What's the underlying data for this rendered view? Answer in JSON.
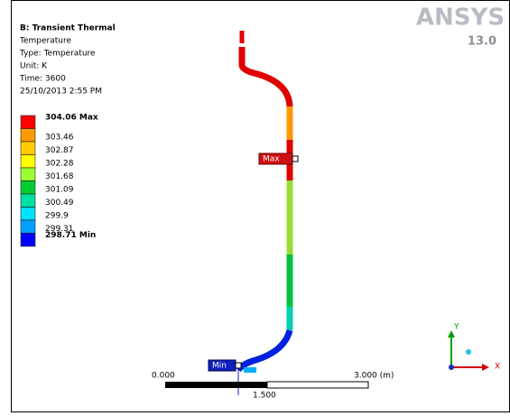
{
  "header": {
    "title": "B: Transient Thermal",
    "lines": [
      "Temperature",
      "Type: Temperature",
      "Unit: K",
      "Time: 3600",
      "25/10/2013 2:55 PM"
    ]
  },
  "legend": [
    {
      "label": "304.06 Max",
      "color": "#ff0000"
    },
    {
      "label": "303.46",
      "color": "#ff9900"
    },
    {
      "label": "302.87",
      "color": "#ffcc00"
    },
    {
      "label": "302.28",
      "color": "#ffff00"
    },
    {
      "label": "301.68",
      "color": "#99ff33"
    },
    {
      "label": "301.09",
      "color": "#00cc33"
    },
    {
      "label": "300.49",
      "color": "#00e0a0"
    },
    {
      "label": "299.9",
      "color": "#00e0ff"
    },
    {
      "label": "299.31",
      "color": "#00a0ff"
    },
    {
      "label": "298.71 Min",
      "color": "#0000ff"
    }
  ],
  "logo": {
    "brand": "ANSYS",
    "version": "13.0"
  },
  "probes": {
    "max": "Max",
    "min": "Min"
  },
  "scale": {
    "start": "0.000",
    "end": "3.000 (m)",
    "mid": "1.500"
  },
  "triad": {
    "y": "Y",
    "x": "X"
  }
}
